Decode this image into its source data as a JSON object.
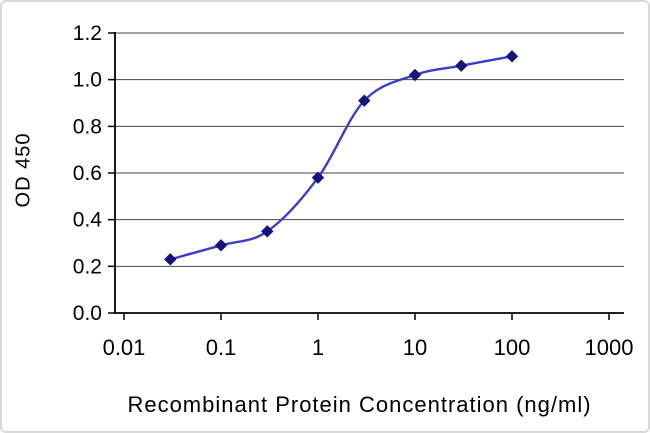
{
  "figure": {
    "background": "#ffffff",
    "frame_color": "#d9d9d9"
  },
  "chart_data": {
    "type": "line",
    "xlabel": "Recombinant Protein Concentration (ng/ml)",
    "ylabel": "OD 450",
    "x_scale": "log",
    "xlim": [
      0.01,
      1000
    ],
    "ylim": [
      0.0,
      1.2
    ],
    "grid": "horizontal",
    "legend": "none",
    "x_ticks": [
      0.01,
      0.1,
      1,
      10,
      100,
      1000
    ],
    "x_tick_labels": [
      "0.01",
      "0.1",
      "1",
      "10",
      "100",
      "1000"
    ],
    "y_ticks": [
      0.0,
      0.2,
      0.4,
      0.6,
      0.8,
      1.0,
      1.2
    ],
    "y_tick_labels": [
      "0.0",
      "0.2",
      "0.4",
      "0.6",
      "0.8",
      "1.0",
      "1.2"
    ],
    "series": [
      {
        "name": "OD 450",
        "x": [
          0.03,
          0.1,
          0.3,
          1,
          3,
          10,
          30,
          100
        ],
        "y": [
          0.23,
          0.29,
          0.35,
          0.58,
          0.91,
          1.02,
          1.06,
          1.1
        ],
        "line_color": "#3c3ccc",
        "marker": "diamond",
        "marker_color": "#14147a"
      }
    ],
    "colors": {
      "axis": "#000000",
      "gridline": "#444444",
      "text": "#000000"
    }
  }
}
